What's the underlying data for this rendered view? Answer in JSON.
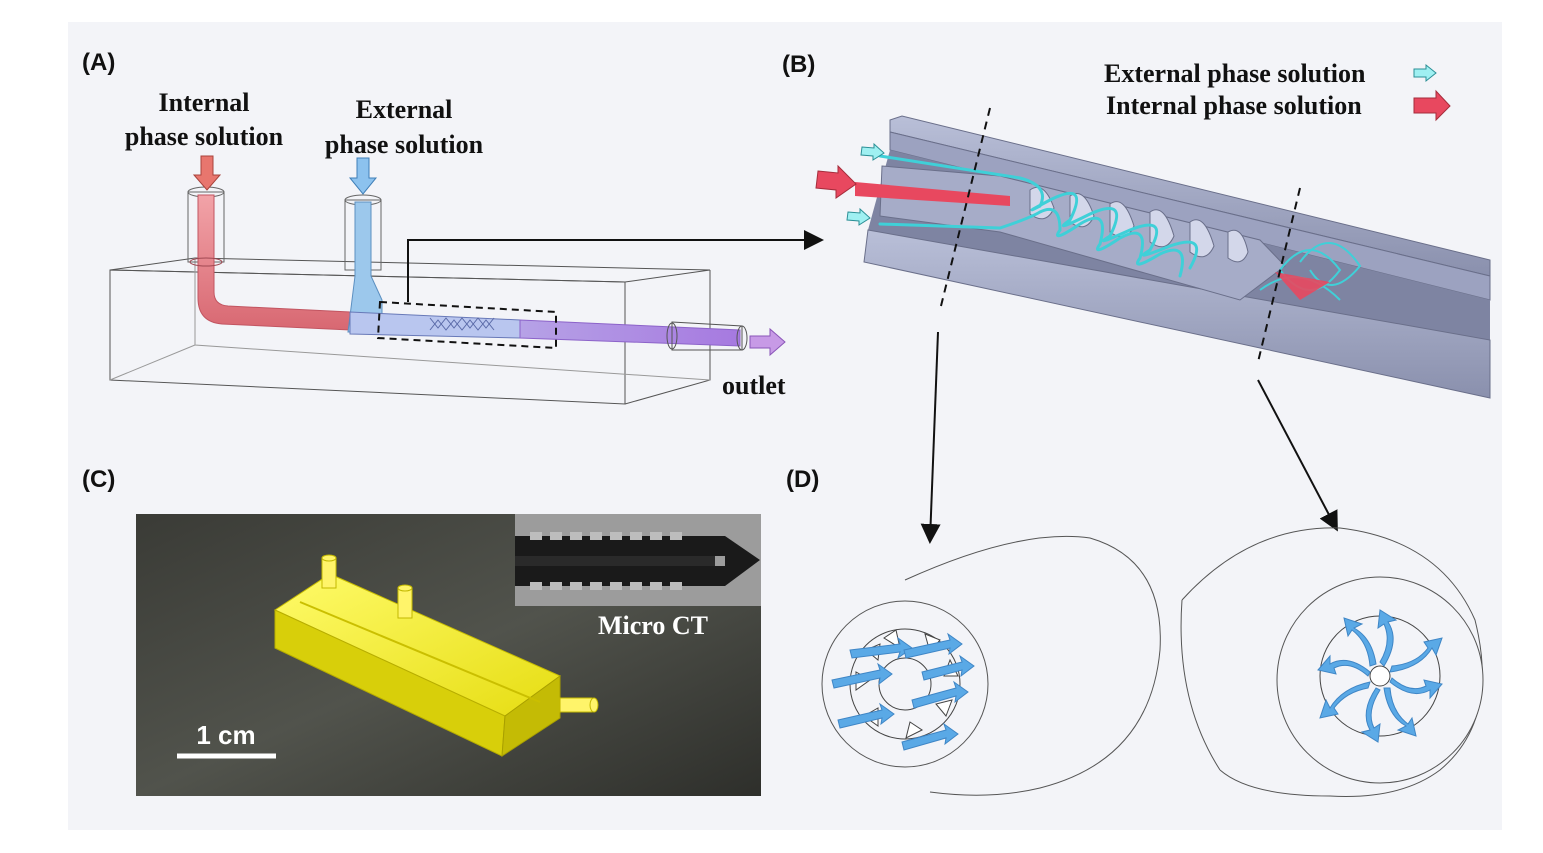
{
  "panels": {
    "a": "(A)",
    "b": "(B)",
    "c": "(C)",
    "d": "(D)"
  },
  "panel_a": {
    "internal_line1": "Internal",
    "internal_line2": "phase solution",
    "external_line1": "External",
    "external_line2": "phase solution",
    "outlet": "outlet"
  },
  "panel_b": {
    "legend_external": "External phase solution",
    "legend_internal": "Internal phase solution"
  },
  "panel_c": {
    "inset_label": "Micro CT",
    "scale_bar": "1 cm"
  },
  "colors": {
    "internal": "#e8485f",
    "external": "#3fd0d8",
    "device_yellow": "#f2ea1c",
    "swirl_blue": "#5aa9e6"
  }
}
